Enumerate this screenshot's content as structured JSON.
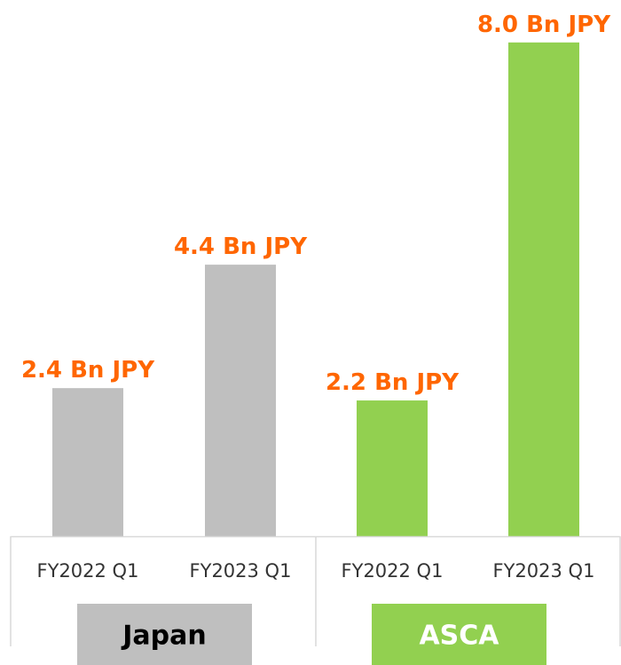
{
  "chart_data": {
    "type": "bar",
    "title": "",
    "xlabel": "",
    "ylabel": "",
    "ylim": [
      0,
      8.4
    ],
    "grid": false,
    "legend": "none",
    "colors": {
      "Japan": "#bfbfbf",
      "ASCA": "#92d050",
      "data_label": "#ff6600",
      "axis": "#d9d9d9",
      "group_text_japan": "#000000",
      "group_text_asca": "#ffffff"
    },
    "bars": [
      {
        "group": "Japan",
        "category": "FY2022 Q1",
        "value": 2.4,
        "label": "2.4 Bn JPY"
      },
      {
        "group": "Japan",
        "category": "FY2023 Q1",
        "value": 4.4,
        "label": "4.4 Bn JPY"
      },
      {
        "group": "ASCA",
        "category": "FY2022 Q1",
        "value": 2.2,
        "label": "2.2 Bn JPY"
      },
      {
        "group": "ASCA",
        "category": "FY2023 Q1",
        "value": 8.0,
        "label": "8.0 Bn JPY"
      }
    ],
    "groups": [
      {
        "name": "Japan",
        "label": "Japan"
      },
      {
        "name": "ASCA",
        "label": "ASCA"
      }
    ]
  }
}
